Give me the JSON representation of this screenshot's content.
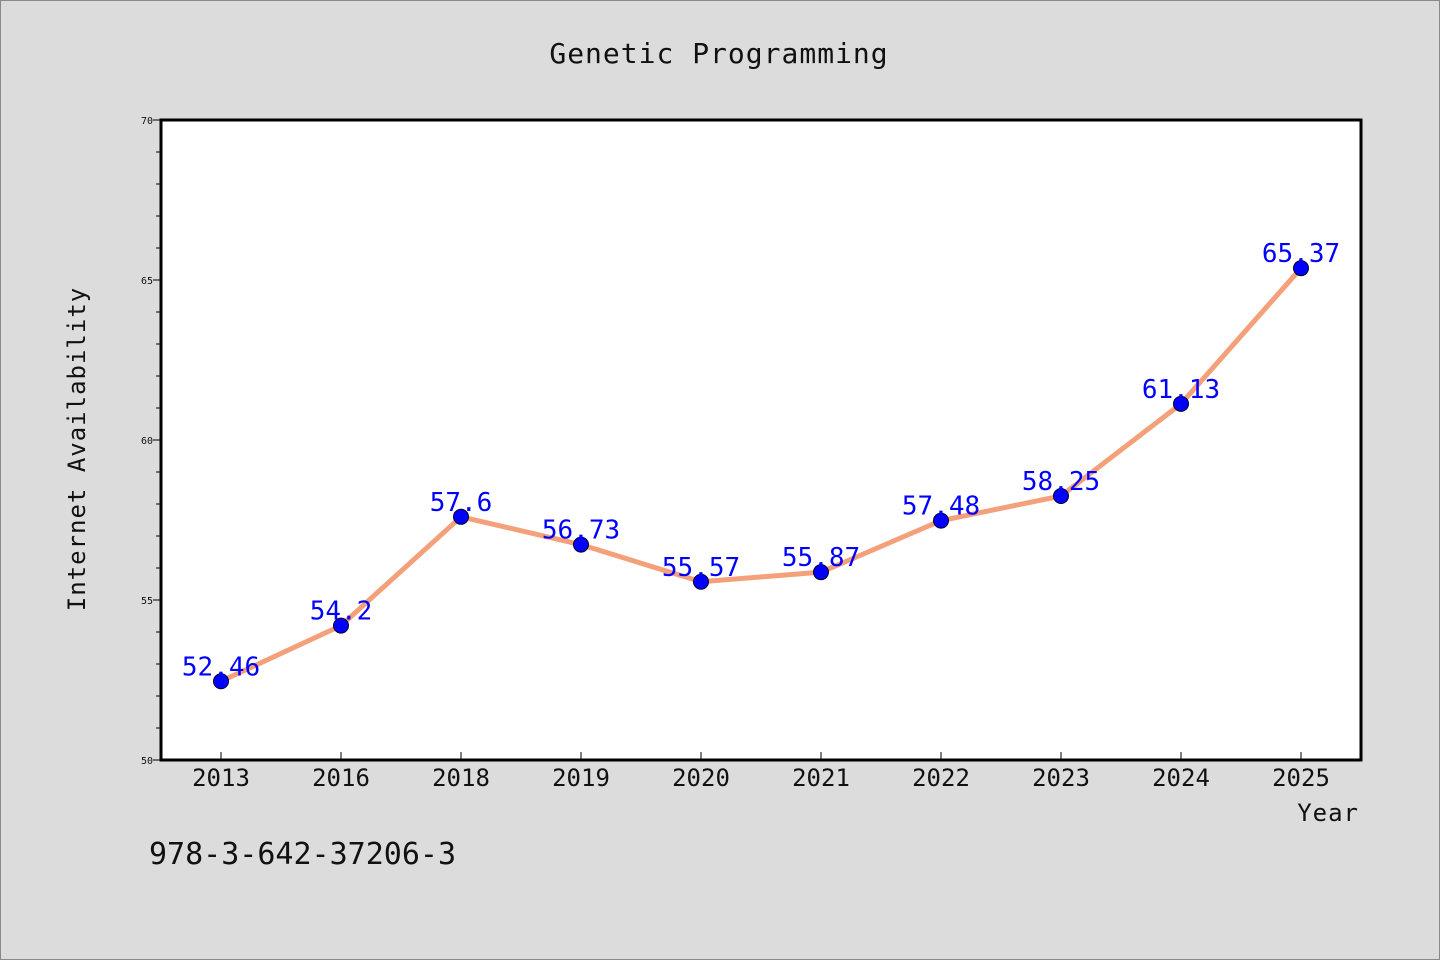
{
  "chart_data": {
    "type": "line",
    "title": "Genetic Programming",
    "xlabel": "Year",
    "ylabel": "Internet Availability",
    "categories": [
      "2013",
      "2016",
      "2018",
      "2019",
      "2020",
      "2021",
      "2022",
      "2023",
      "2024",
      "2025"
    ],
    "series": [
      {
        "values": [
          52.46,
          54.2,
          57.6,
          56.73,
          55.57,
          55.87,
          57.48,
          58.25,
          61.13,
          65.37
        ],
        "labels": [
          "52.46",
          "54.2",
          "57.6",
          "56.73",
          "55.57",
          "55.87",
          "57.48",
          "58.25",
          "61.13",
          "65.37"
        ],
        "line_color": "#f4a07a",
        "marker_color": "#0000ff"
      }
    ],
    "ylim": [
      50,
      70
    ],
    "yticks": [
      "50",
      "55",
      "60",
      "65",
      "70"
    ],
    "grid": false,
    "legend": "none",
    "plot_background": "#ffffff",
    "figure_background": "#dcdcdc"
  },
  "footnote": "978-3-642-37206-3"
}
